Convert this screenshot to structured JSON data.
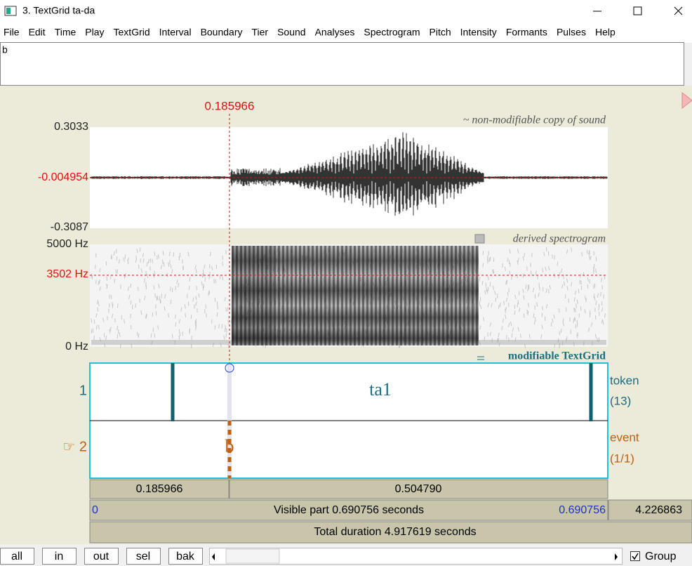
{
  "window": {
    "title": "3. TextGrid ta-da"
  },
  "menu": [
    "File",
    "Edit",
    "Time",
    "Play",
    "TextGrid",
    "Interval",
    "Boundary",
    "Tier",
    "Sound",
    "Analyses",
    "Spectrogram",
    "Pitch",
    "Intensity",
    "Formants",
    "Pulses",
    "Help"
  ],
  "text_field": "b",
  "cursor_time": "0.185966",
  "sound": {
    "max": "0.3033",
    "cursor_value": "-0.004954",
    "min": "-0.3087",
    "label": "~ non-modifiable copy of sound"
  },
  "spectrogram": {
    "top": "5000 Hz",
    "cursor_freq": "3502 Hz",
    "bottom": "0 Hz",
    "label": "derived spectrogram"
  },
  "textgrid": {
    "label": "modifiable TextGrid",
    "tiers": [
      {
        "number": "1",
        "name": "token",
        "count": "(13)",
        "text": "ta1"
      },
      {
        "number": "☞ 2",
        "name": "event",
        "count": "(1/1)",
        "text": "b"
      }
    ]
  },
  "time_bar": {
    "left": "0.185966",
    "right": "0.504790"
  },
  "visible": {
    "start": "0",
    "label": "Visible part 0.690756 seconds",
    "end": "0.690756",
    "remaining": "4.226863"
  },
  "total": "Total duration 4.917619 seconds",
  "buttons": [
    "all",
    "in",
    "out",
    "sel",
    "bak"
  ],
  "group": "Group"
}
